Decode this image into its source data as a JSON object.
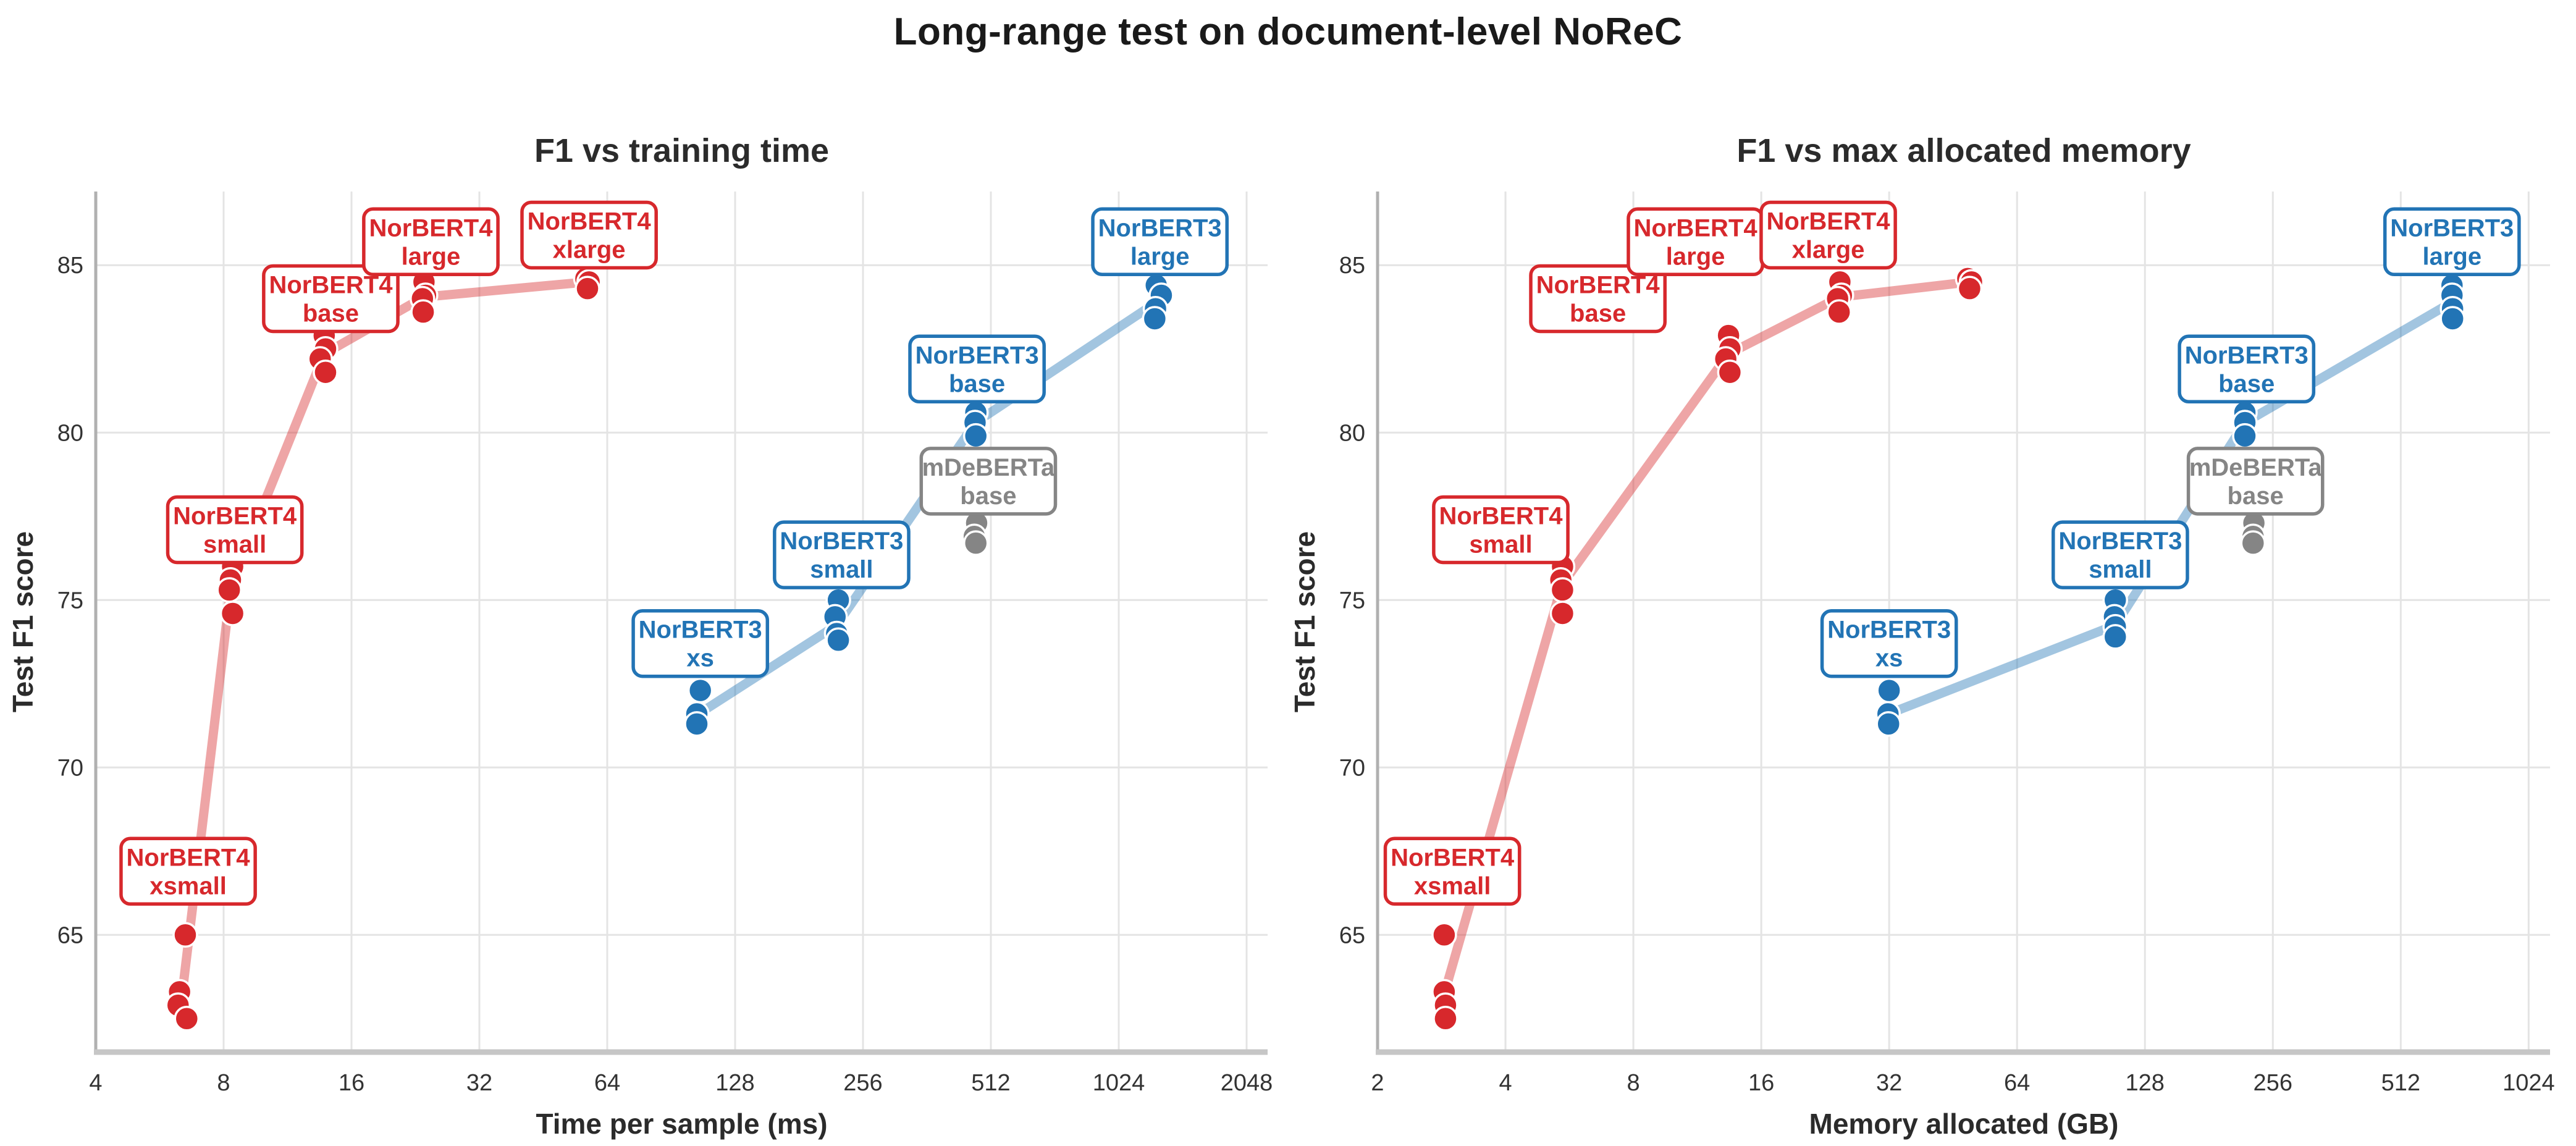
{
  "suptitle": "Long-range test on document-level NoReC",
  "colors": {
    "norbert4_red": "#d7282c",
    "norbert3_blue": "#2274b5",
    "mdeberta_gray": "#858585",
    "grid": "#e4e4e4",
    "left_spine": "#b0b0b0",
    "bottom_spine": "#c6c6c6",
    "tick_text": "#333333",
    "title_text": "#2b2b2b"
  },
  "chart_data": [
    {
      "type": "scatter",
      "title": "F1 vs training time",
      "xlabel": "Time per sample (ms)",
      "ylabel": "Test F1 score",
      "x_scale": "log2",
      "grid": true,
      "xlim": [
        4,
        2295
      ],
      "ylim": [
        61.5,
        87.2
      ],
      "x_ticks": [
        4,
        8,
        16,
        32,
        64,
        128,
        256,
        512,
        1024,
        2048
      ],
      "y_ticks": [
        65,
        70,
        75,
        80,
        85
      ],
      "trend_lines": [
        {
          "family": "NorBERT4",
          "color": "#d7282c",
          "path": [
            [
              6.4,
              63.3
            ],
            [
              8.33,
              75.45
            ],
            [
              13.8,
              82.35
            ],
            [
              23.7,
              84.05
            ],
            [
              57.5,
              84.5
            ]
          ]
        },
        {
          "family": "NorBERT3",
          "color": "#2274b5",
          "path": [
            [
              105,
              71.6
            ],
            [
              222,
              74.25
            ],
            [
              471,
              80.3
            ],
            [
              1260,
              83.9
            ]
          ]
        }
      ],
      "point_groups": [
        {
          "model": "NorBERT4 xsmall",
          "color": "#d7282c",
          "points": [
            [
              6.5,
              65.0
            ],
            [
              6.3,
              63.3
            ],
            [
              6.25,
              62.9
            ],
            [
              6.55,
              62.5
            ]
          ]
        },
        {
          "model": "NorBERT4 small",
          "color": "#d7282c",
          "points": [
            [
              8.4,
              76.0
            ],
            [
              8.3,
              75.6
            ],
            [
              8.25,
              75.3
            ],
            [
              8.4,
              74.6
            ]
          ]
        },
        {
          "model": "NorBERT4 base",
          "color": "#d7282c",
          "points": [
            [
              13.8,
              82.9
            ],
            [
              13.9,
              82.5
            ],
            [
              13.5,
              82.2
            ],
            [
              13.9,
              81.8
            ]
          ]
        },
        {
          "model": "NorBERT4 large",
          "color": "#d7282c",
          "points": [
            [
              23.7,
              84.5
            ],
            [
              23.9,
              84.1
            ],
            [
              23.5,
              84.0
            ],
            [
              23.6,
              83.6
            ]
          ]
        },
        {
          "model": "NorBERT4 xlarge",
          "color": "#d7282c",
          "points": [
            [
              57.0,
              84.6
            ],
            [
              58.0,
              84.5
            ],
            [
              57.5,
              84.3
            ]
          ]
        },
        {
          "model": "NorBERT3 xs",
          "color": "#2274b5",
          "points": [
            [
              106,
              72.3
            ],
            [
              104,
              71.6
            ],
            [
              104,
              71.3
            ]
          ]
        },
        {
          "model": "NorBERT3 small",
          "color": "#2274b5",
          "points": [
            [
              224,
              75.0
            ],
            [
              220,
              74.5
            ],
            [
              222,
              74.0
            ],
            [
              224,
              73.8
            ]
          ]
        },
        {
          "model": "NorBERT3 base",
          "color": "#2274b5",
          "points": [
            [
              472,
              80.6
            ],
            [
              470,
              80.3
            ],
            [
              472,
              79.9
            ]
          ]
        },
        {
          "model": "NorBERT3 large",
          "color": "#2274b5",
          "points": [
            [
              1255,
              84.4
            ],
            [
              1290,
              84.1
            ],
            [
              1250,
              83.7
            ],
            [
              1245,
              83.4
            ]
          ]
        },
        {
          "model": "mDeBERTa base",
          "color": "#858585",
          "points": [
            [
              474,
              77.3
            ],
            [
              468,
              76.9
            ],
            [
              472,
              76.7
            ]
          ]
        }
      ],
      "annotations": [
        {
          "lines": [
            "NorBERT4",
            "xsmall"
          ],
          "x": 6.6,
          "y": 66.9,
          "color": "#d7282c"
        },
        {
          "lines": [
            "NorBERT4",
            "small"
          ],
          "x": 8.5,
          "y": 77.1,
          "color": "#d7282c"
        },
        {
          "lines": [
            "NorBERT4",
            "base"
          ],
          "x": 14.3,
          "y": 84.0,
          "color": "#d7282c"
        },
        {
          "lines": [
            "NorBERT4",
            "large"
          ],
          "x": 24.6,
          "y": 85.7,
          "color": "#d7282c"
        },
        {
          "lines": [
            "NorBERT4",
            "xlarge"
          ],
          "x": 58,
          "y": 85.9,
          "color": "#d7282c"
        },
        {
          "lines": [
            "NorBERT3",
            "xs"
          ],
          "x": 106,
          "y": 73.7,
          "color": "#2274b5"
        },
        {
          "lines": [
            "NorBERT3",
            "small"
          ],
          "x": 228,
          "y": 76.35,
          "color": "#2274b5"
        },
        {
          "lines": [
            "mDeBERTa",
            "base"
          ],
          "x": 505,
          "y": 78.55,
          "color": "#858585"
        },
        {
          "lines": [
            "NorBERT3",
            "base"
          ],
          "x": 475,
          "y": 81.9,
          "color": "#2274b5"
        },
        {
          "lines": [
            "NorBERT3",
            "large"
          ],
          "x": 1280,
          "y": 85.7,
          "color": "#2274b5"
        }
      ]
    },
    {
      "type": "scatter",
      "title": "F1 vs max allocated memory",
      "xlabel": "Memory allocated (GB)",
      "ylabel": "Test F1 score",
      "x_scale": "log2",
      "grid": true,
      "xlim": [
        2,
        1150
      ],
      "ylim": [
        61.5,
        87.2
      ],
      "x_ticks": [
        2,
        4,
        8,
        16,
        32,
        64,
        128,
        256,
        512,
        1024
      ],
      "y_ticks": [
        65,
        70,
        75,
        80,
        85
      ],
      "trend_lines": [
        {
          "family": "NorBERT4",
          "color": "#d7282c",
          "path": [
            [
              2.88,
              63.3
            ],
            [
              5.43,
              75.45
            ],
            [
              13.4,
              82.35
            ],
            [
              24.5,
              84.05
            ],
            [
              49.5,
              84.5
            ]
          ]
        },
        {
          "family": "NorBERT3",
          "color": "#2274b5",
          "path": [
            [
              31.9,
              71.6
            ],
            [
              109,
              74.25
            ],
            [
              220,
              80.3
            ],
            [
              677,
              83.9
            ]
          ]
        }
      ],
      "point_groups": [
        {
          "model": "NorBERT4 xsmall",
          "color": "#d7282c",
          "points": [
            [
              2.87,
              65.0
            ],
            [
              2.87,
              63.3
            ],
            [
              2.89,
              62.9
            ],
            [
              2.89,
              62.5
            ]
          ]
        },
        {
          "model": "NorBERT4 small",
          "color": "#d7282c",
          "points": [
            [
              5.45,
              76.0
            ],
            [
              5.4,
              75.6
            ],
            [
              5.45,
              75.3
            ],
            [
              5.45,
              74.6
            ]
          ]
        },
        {
          "model": "NorBERT4 base",
          "color": "#d7282c",
          "points": [
            [
              13.4,
              82.9
            ],
            [
              13.5,
              82.5
            ],
            [
              13.2,
              82.2
            ],
            [
              13.5,
              81.8
            ]
          ]
        },
        {
          "model": "NorBERT4 large",
          "color": "#d7282c",
          "points": [
            [
              24.5,
              84.5
            ],
            [
              24.7,
              84.1
            ],
            [
              24.2,
              84.0
            ],
            [
              24.4,
              83.6
            ]
          ]
        },
        {
          "model": "NorBERT4 xlarge",
          "color": "#d7282c",
          "points": [
            [
              49.0,
              84.6
            ],
            [
              50.0,
              84.5
            ],
            [
              49.5,
              84.3
            ]
          ]
        },
        {
          "model": "NorBERT3 xs",
          "color": "#2274b5",
          "points": [
            [
              32.0,
              72.3
            ],
            [
              31.8,
              71.6
            ],
            [
              31.9,
              71.3
            ]
          ]
        },
        {
          "model": "NorBERT3 small",
          "color": "#2274b5",
          "points": [
            [
              109,
              75.0
            ],
            [
              108.5,
              74.5
            ],
            [
              109,
              74.2
            ],
            [
              109,
              73.9
            ]
          ]
        },
        {
          "model": "NorBERT3 base",
          "color": "#2274b5",
          "points": [
            [
              220,
              80.6
            ],
            [
              220,
              80.3
            ],
            [
              220,
              79.9
            ]
          ]
        },
        {
          "model": "NorBERT3 large",
          "color": "#2274b5",
          "points": [
            [
              676,
              84.4
            ],
            [
              676,
              84.1
            ],
            [
              678,
              83.7
            ],
            [
              678,
              83.4
            ]
          ]
        },
        {
          "model": "mDeBERTa base",
          "color": "#858585",
          "points": [
            [
              231,
              77.3
            ],
            [
              230,
              76.9
            ],
            [
              230,
              76.7
            ]
          ]
        }
      ],
      "annotations": [
        {
          "lines": [
            "NorBERT4",
            "xsmall"
          ],
          "x": 3.0,
          "y": 66.9,
          "color": "#d7282c"
        },
        {
          "lines": [
            "NorBERT4",
            "small"
          ],
          "x": 3.9,
          "y": 77.1,
          "color": "#d7282c"
        },
        {
          "lines": [
            "NorBERT4",
            "base"
          ],
          "x": 6.6,
          "y": 84.0,
          "color": "#d7282c"
        },
        {
          "lines": [
            "NorBERT4",
            "large"
          ],
          "x": 11.2,
          "y": 85.7,
          "color": "#d7282c"
        },
        {
          "lines": [
            "NorBERT4",
            "xlarge"
          ],
          "x": 23,
          "y": 85.9,
          "color": "#d7282c"
        },
        {
          "lines": [
            "NorBERT3",
            "xs"
          ],
          "x": 32,
          "y": 73.7,
          "color": "#2274b5"
        },
        {
          "lines": [
            "NorBERT3",
            "small"
          ],
          "x": 112,
          "y": 76.35,
          "color": "#2274b5"
        },
        {
          "lines": [
            "mDeBERTa",
            "base"
          ],
          "x": 233,
          "y": 78.55,
          "color": "#858585"
        },
        {
          "lines": [
            "NorBERT3",
            "base"
          ],
          "x": 222,
          "y": 81.9,
          "color": "#2274b5"
        },
        {
          "lines": [
            "NorBERT3",
            "large"
          ],
          "x": 676,
          "y": 85.7,
          "color": "#2274b5"
        }
      ]
    }
  ]
}
